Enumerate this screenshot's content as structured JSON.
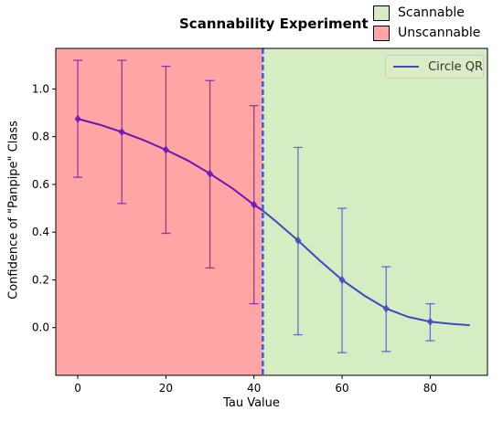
{
  "chart_data": {
    "type": "line",
    "title": "Scannability Experiment",
    "xlabel": "Tau Value",
    "ylabel": "Confidence of \"Panpipe\" Class",
    "xlim": [
      -5,
      93
    ],
    "ylim": [
      -0.2,
      1.17
    ],
    "x_ticks": [
      0,
      20,
      40,
      60,
      80
    ],
    "y_ticks": [
      0.0,
      0.2,
      0.4,
      0.6,
      0.8,
      1.0
    ],
    "threshold": 42,
    "regions": [
      {
        "label": "Unscannable",
        "color": "#ffa5a5",
        "from": -5,
        "to": 42
      },
      {
        "label": "Scannable",
        "color": "#d6edc4",
        "from": 42,
        "to": 93
      }
    ],
    "region_legend": [
      {
        "label": "Scannable",
        "color": "#d6edc4"
      },
      {
        "label": "Unscannable",
        "color": "#ffa5a5"
      }
    ],
    "series": [
      {
        "name": "Circle QR",
        "color": "#3b4cc0",
        "left_color": "#6a16b4",
        "curve_x": [
          0,
          5,
          10,
          15,
          20,
          25,
          30,
          35,
          40,
          42,
          45,
          50,
          55,
          60,
          65,
          70,
          75,
          80,
          85,
          89
        ],
        "curve_y": [
          0.875,
          0.85,
          0.82,
          0.785,
          0.745,
          0.7,
          0.645,
          0.585,
          0.515,
          0.49,
          0.445,
          0.365,
          0.28,
          0.2,
          0.135,
          0.08,
          0.045,
          0.025,
          0.015,
          0.01
        ],
        "points": [
          {
            "x": 0,
            "y": 0.875,
            "err_low": 0.63,
            "err_high": 1.12
          },
          {
            "x": 10,
            "y": 0.82,
            "err_low": 0.52,
            "err_high": 1.12
          },
          {
            "x": 20,
            "y": 0.745,
            "err_low": 0.395,
            "err_high": 1.095
          },
          {
            "x": 30,
            "y": 0.645,
            "err_low": 0.25,
            "err_high": 1.035
          },
          {
            "x": 40,
            "y": 0.515,
            "err_low": 0.1,
            "err_high": 0.93
          },
          {
            "x": 50,
            "y": 0.365,
            "err_low": -0.03,
            "err_high": 0.755
          },
          {
            "x": 60,
            "y": 0.2,
            "err_low": -0.105,
            "err_high": 0.5
          },
          {
            "x": 70,
            "y": 0.08,
            "err_low": -0.1,
            "err_high": 0.255
          },
          {
            "x": 80,
            "y": 0.025,
            "err_low": -0.055,
            "err_high": 0.1
          }
        ]
      }
    ]
  }
}
